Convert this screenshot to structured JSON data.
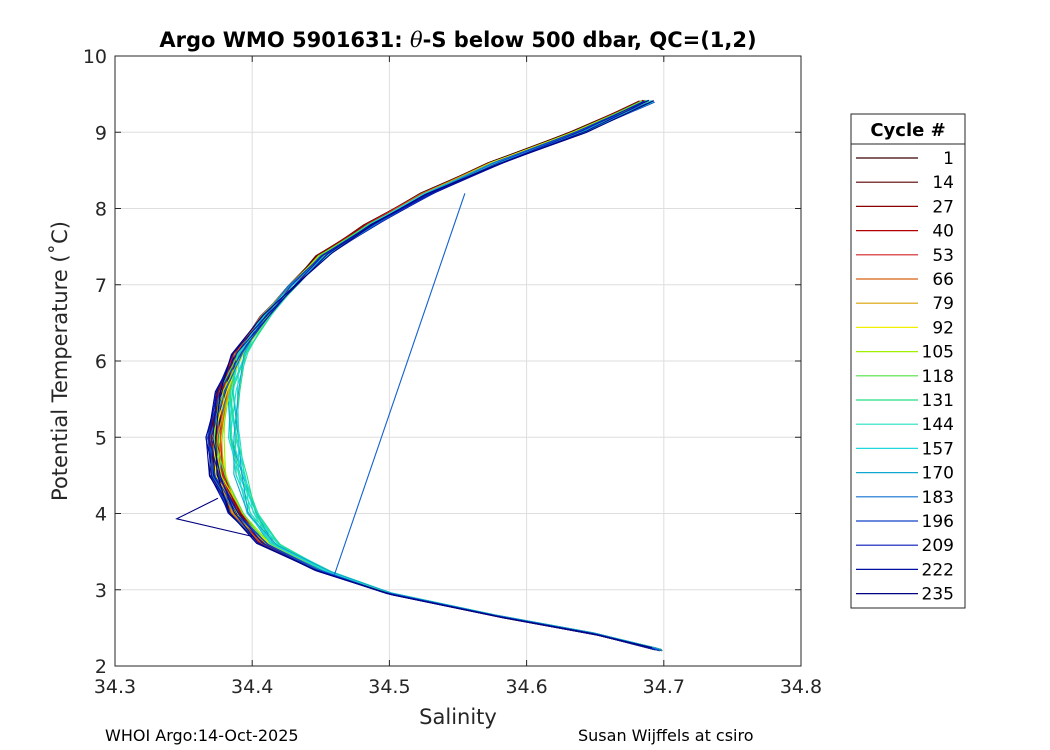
{
  "chart_data": {
    "type": "line",
    "title_prefix": "Argo WMO 5901631: ",
    "title_theta": "θ",
    "title_suffix": "-S below 500 dbar,  QC=(1,2)",
    "xlabel": "Salinity",
    "ylabel": "Potential Temperature (˚C)",
    "xlim": [
      34.3,
      34.8
    ],
    "ylim": [
      2,
      10
    ],
    "xticks": [
      "34.3",
      "34.4",
      "34.5",
      "34.6",
      "34.7",
      "34.8"
    ],
    "yticks": [
      "2",
      "3",
      "4",
      "5",
      "6",
      "7",
      "8",
      "9",
      "10"
    ],
    "grid": true,
    "legend": {
      "title": "Cycle #",
      "placement": "right-outside",
      "entries": [
        {
          "label": "1",
          "color": "#3a0000"
        },
        {
          "label": "14",
          "color": "#5c0000"
        },
        {
          "label": "27",
          "color": "#8b0000"
        },
        {
          "label": "40",
          "color": "#b00000"
        },
        {
          "label": "53",
          "color": "#d22020"
        },
        {
          "label": "66",
          "color": "#d86010"
        },
        {
          "label": "79",
          "color": "#d8a000"
        },
        {
          "label": "92",
          "color": "#f0f000"
        },
        {
          "label": "105",
          "color": "#a0f000"
        },
        {
          "label": "118",
          "color": "#50e040"
        },
        {
          "label": "131",
          "color": "#20e080"
        },
        {
          "label": "144",
          "color": "#20e0c0"
        },
        {
          "label": "157",
          "color": "#20d8e0"
        },
        {
          "label": "170",
          "color": "#10a8d0"
        },
        {
          "label": "183",
          "color": "#1070d0"
        },
        {
          "label": "196",
          "color": "#1040c8"
        },
        {
          "label": "209",
          "color": "#0818b8"
        },
        {
          "label": "222",
          "color": "#0010a0"
        },
        {
          "label": "235",
          "color": "#000080"
        }
      ]
    },
    "mean_profile": [
      {
        "s": 34.69,
        "t": 9.4
      },
      {
        "s": 34.64,
        "t": 9.0
      },
      {
        "s": 34.58,
        "t": 8.6
      },
      {
        "s": 34.53,
        "t": 8.2
      },
      {
        "s": 34.49,
        "t": 7.8
      },
      {
        "s": 34.455,
        "t": 7.4
      },
      {
        "s": 34.43,
        "t": 7.0
      },
      {
        "s": 34.41,
        "t": 6.6
      },
      {
        "s": 34.39,
        "t": 6.1
      },
      {
        "s": 34.38,
        "t": 5.6
      },
      {
        "s": 34.375,
        "t": 5.0
      },
      {
        "s": 34.378,
        "t": 4.5
      },
      {
        "s": 34.39,
        "t": 4.0
      },
      {
        "s": 34.41,
        "t": 3.6
      },
      {
        "s": 34.45,
        "t": 3.25
      },
      {
        "s": 34.5,
        "t": 2.95
      },
      {
        "s": 34.58,
        "t": 2.65
      },
      {
        "s": 34.65,
        "t": 2.42
      },
      {
        "s": 34.695,
        "t": 2.22
      }
    ],
    "anomaly_segments": [
      {
        "color": "#1060d0",
        "points": [
          {
            "s": 34.555,
            "t": 8.2
          },
          {
            "s": 34.46,
            "t": 3.2
          }
        ]
      },
      {
        "color": "#000080",
        "points": [
          {
            "s": 34.375,
            "t": 4.2
          },
          {
            "s": 34.345,
            "t": 3.93
          },
          {
            "s": 34.4,
            "t": 3.7
          }
        ]
      }
    ]
  },
  "footer": {
    "left": "WHOI Argo:14-Oct-2025",
    "right": "Susan Wijffels at csiro"
  }
}
